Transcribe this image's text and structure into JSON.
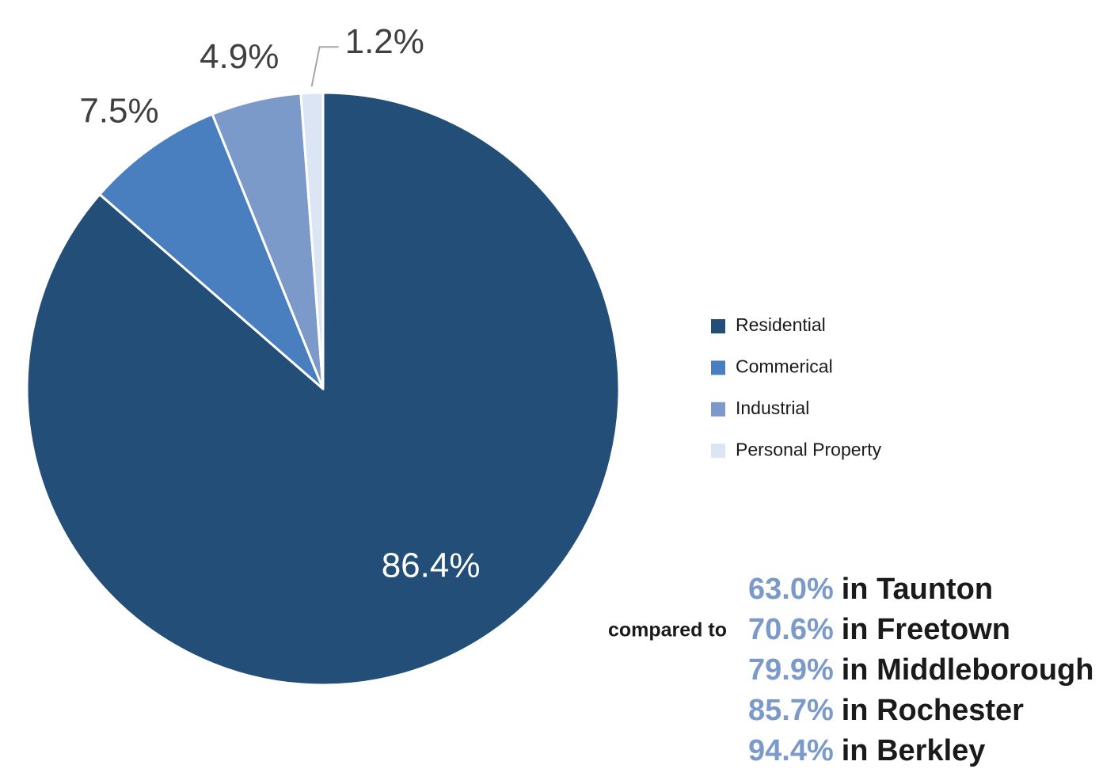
{
  "chart_data": {
    "type": "pie",
    "categories": [
      "Residential",
      "Commerical",
      "Industrial",
      "Personal Property"
    ],
    "values": [
      86.4,
      7.5,
      4.9,
      1.2
    ],
    "value_labels": [
      "86.4%",
      "7.5%",
      "4.9%",
      "1.2%"
    ],
    "colors": [
      "#234e78",
      "#4a7fbf",
      "#7b9ac9",
      "#dce5f3"
    ],
    "legend": "right"
  },
  "comparison": {
    "label": "compared to",
    "items": [
      {
        "value": "63.0%",
        "text": "in Taunton"
      },
      {
        "value": "70.6%",
        "text": "in Freetown"
      },
      {
        "value": "79.9%",
        "text": "in Middleborough"
      },
      {
        "value": "85.7%",
        "text": "in Rochester"
      },
      {
        "value": "94.4%",
        "text": "in Berkley"
      }
    ]
  }
}
